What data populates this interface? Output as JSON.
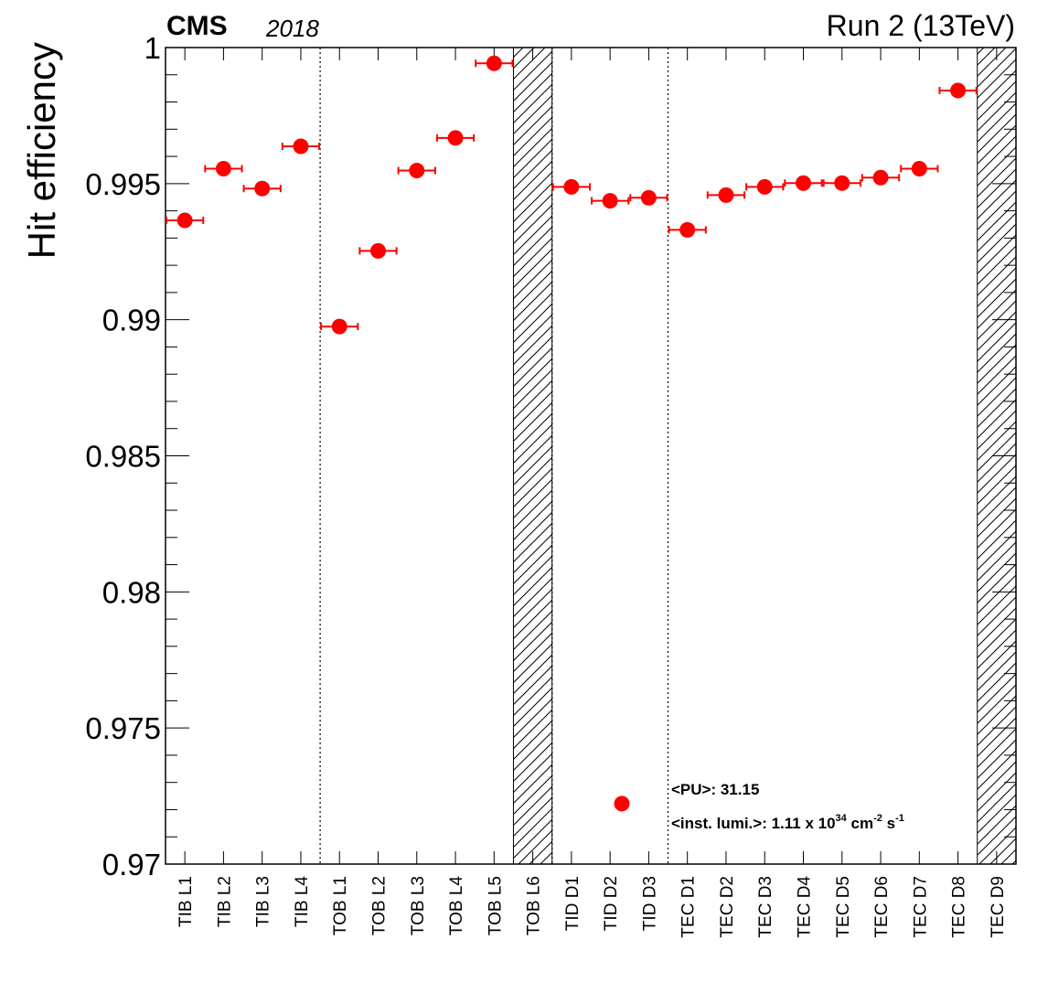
{
  "header": {
    "experiment": "CMS",
    "year": "2018",
    "run": "Run 2 (13TeV)"
  },
  "colors": {
    "marker": "#ff0000",
    "axis": "#000000",
    "background": "#ffffff"
  },
  "chart_data": {
    "type": "scatter",
    "title": "",
    "xlabel": "",
    "ylabel": "Hit efficiency",
    "ylim": [
      0.97,
      1.0
    ],
    "yticks": [
      "0.97",
      "0.975",
      "0.98",
      "0.985",
      "0.99",
      "0.995",
      "1"
    ],
    "grid": false,
    "categories": [
      "TIB L1",
      "TIB L2",
      "TIB L3",
      "TIB L4",
      "TOB L1",
      "TOB L2",
      "TOB L3",
      "TOB L4",
      "TOB L5",
      "TOB L6",
      "TID D1",
      "TID D2",
      "TID D3",
      "TEC D1",
      "TEC D2",
      "TEC D3",
      "TEC D4",
      "TEC D5",
      "TEC D6",
      "TEC D7",
      "TEC D8",
      "TEC D9"
    ],
    "values": [
      0.99365,
      0.99555,
      0.99482,
      0.99637,
      0.98975,
      0.99253,
      0.99548,
      0.99668,
      0.99942,
      null,
      0.99488,
      0.99437,
      0.99448,
      0.9933,
      0.99458,
      0.99488,
      0.99502,
      0.99502,
      0.99522,
      0.99555,
      0.99842,
      null
    ],
    "excluded_layers": [
      "TOB L6",
      "TEC D9"
    ],
    "separators_after": [
      "TIB L4",
      "TOB L6",
      "TID D3"
    ],
    "annotations": [
      {
        "text": "<PU>: 31.15"
      },
      {
        "text_prefix": "<inst. lumi.>: 1.11 x 10",
        "exp1": "34",
        "unit1": " cm",
        "exp2": "-2",
        "unit2": " s",
        "exp3": "-1"
      }
    ],
    "legend_marker_value": 0.97222
  }
}
